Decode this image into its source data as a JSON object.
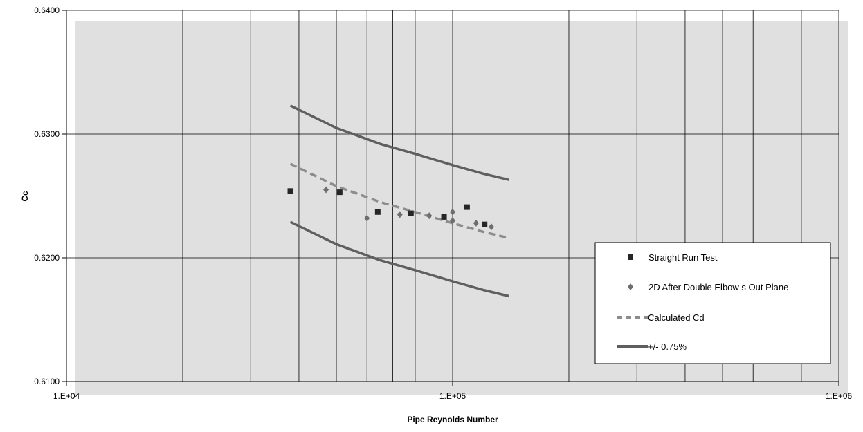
{
  "chart_data": {
    "type": "scatter",
    "title": "",
    "xlabel": "Pipe Reynolds Number",
    "ylabel": "Cc",
    "x_scale": "log",
    "xlim": [
      10000,
      1000000
    ],
    "ylim": [
      0.61,
      0.64
    ],
    "x_ticks": [
      10000,
      100000,
      1000000
    ],
    "x_tick_labels": [
      "1.E+04",
      "1.E+05",
      "1.E+06"
    ],
    "y_ticks": [
      0.61,
      0.62,
      0.63,
      0.64
    ],
    "y_tick_labels": [
      "0.6100",
      "0.6200",
      "0.6300",
      "0.6400"
    ],
    "grid": true,
    "legend_position": "bottom-right",
    "colors": {
      "plot_bg": "#e0e0e0",
      "grid": "#000000",
      "straight": "#262626",
      "elbows": "#6e6e6e",
      "calculated": "#8c8c8c",
      "band": "#5f5f5f"
    },
    "series": [
      {
        "name": "Straight Run Test",
        "kind": "points",
        "marker": "square",
        "x": [
          38000,
          51000,
          64000,
          78000,
          95000,
          109000,
          121000
        ],
        "y": [
          0.6254,
          0.6253,
          0.6237,
          0.6236,
          0.6233,
          0.6241,
          0.6227
        ]
      },
      {
        "name": "2D After Double Elbow s Out Plane",
        "kind": "points",
        "marker": "diamond",
        "x": [
          47000,
          60000,
          73000,
          87000,
          100000,
          100000,
          115000,
          126000
        ],
        "y": [
          0.6255,
          0.6232,
          0.6235,
          0.6234,
          0.6237,
          0.623,
          0.6228,
          0.6225
        ]
      },
      {
        "name": "Calculated Cd",
        "kind": "line",
        "style": "dashed",
        "x": [
          38000,
          50000,
          65000,
          80000,
          100000,
          120000,
          140000
        ],
        "y": [
          0.6276,
          0.6258,
          0.6245,
          0.6237,
          0.6228,
          0.6221,
          0.6216
        ]
      },
      {
        "name": "+/- 0.75%",
        "kind": "line",
        "style": "solid",
        "x": [
          38000,
          50000,
          65000,
          80000,
          100000,
          120000,
          140000
        ],
        "y": [
          0.6323,
          0.6305,
          0.6292,
          0.6284,
          0.6275,
          0.6268,
          0.6263
        ]
      },
      {
        "name": "",
        "kind": "line",
        "style": "solid",
        "legend_ref": "+/- 0.75%",
        "x": [
          38000,
          50000,
          65000,
          80000,
          100000,
          120000,
          140000
        ],
        "y": [
          0.6229,
          0.6211,
          0.6198,
          0.619,
          0.6181,
          0.6174,
          0.6169
        ]
      }
    ],
    "legend": [
      {
        "label": "Straight Run Test",
        "symbol": "square"
      },
      {
        "label": "2D After Double Elbow s Out Plane",
        "symbol": "diamond"
      },
      {
        "label": "Calculated Cd",
        "symbol": "dashed-line"
      },
      {
        "label": "+/- 0.75%",
        "symbol": "solid-line"
      }
    ]
  }
}
